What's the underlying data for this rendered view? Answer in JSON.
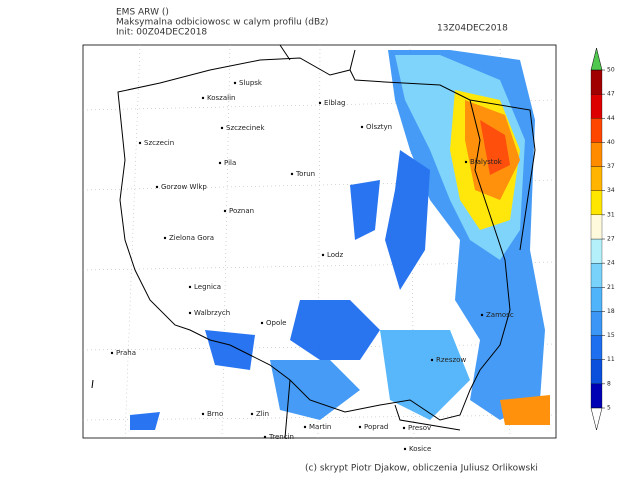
{
  "header": {
    "model": "EMS ARW ()",
    "field": "Maksymalna odbiciowosc w calym profilu (dBz)",
    "init": "Init: 00Z04DEC2018",
    "valid": "13Z04DEC2018"
  },
  "cities": [
    "Slupsk",
    "Koszalin",
    "Elblag",
    "Szczecinek",
    "Olsztyn",
    "Szczecin",
    "Pila",
    "Bialystok",
    "Torun",
    "Gorzow Wlkp",
    "Poznan",
    "Zielona Gora",
    "Lodz",
    "Legnica",
    "Walbrzych",
    "Opole",
    "Zamosc",
    "Praha",
    "Rzeszow",
    "Brno",
    "Zlin",
    "Martin",
    "Poprad",
    "Presov",
    "Trencin",
    "Kosice"
  ],
  "colorbar": {
    "ticks": [
      5,
      8,
      11,
      15,
      18,
      21,
      24,
      27,
      31,
      34,
      37,
      40,
      44,
      47,
      50
    ],
    "colors": [
      "#0000b4",
      "#0a50dc",
      "#1e6ef0",
      "#3c96f5",
      "#50b4fa",
      "#78d2fa",
      "#b4f0fa",
      "#fffadc",
      "#ffe600",
      "#ffb400",
      "#ff8c00",
      "#ff4600",
      "#dc0000",
      "#a00000"
    ],
    "over_color": "#50c850",
    "under_color": "#ffffff"
  },
  "footer": {
    "credits": "(c) skrypt Piotr Djakow, obliczenia Juliusz Orlikowski"
  }
}
